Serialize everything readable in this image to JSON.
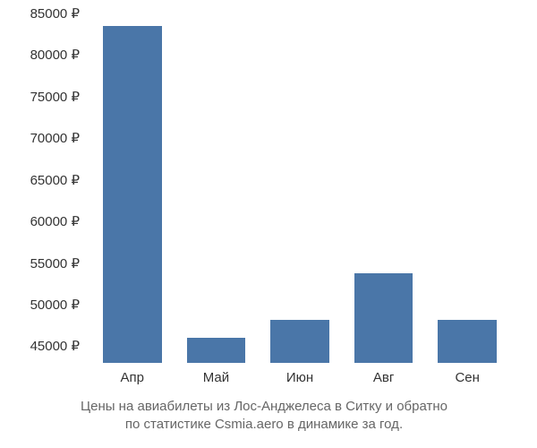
{
  "chart": {
    "type": "bar",
    "categories": [
      "Апр",
      "Май",
      "Июн",
      "Авг",
      "Сен"
    ],
    "values": [
      83500,
      46000,
      48200,
      53800,
      48200
    ],
    "bar_color": "#4a76a8",
    "background_color": "#ffffff",
    "ymin": 43000,
    "ymax": 85000,
    "yticks": [
      45000,
      50000,
      55000,
      60000,
      65000,
      70000,
      75000,
      80000,
      85000
    ],
    "ytick_labels": [
      "45000 ₽",
      "50000 ₽",
      "55000 ₽",
      "60000 ₽",
      "65000 ₽",
      "70000 ₽",
      "75000 ₽",
      "80000 ₽",
      "85000 ₽"
    ],
    "bar_width": 0.7,
    "tick_fontsize": 15,
    "tick_color": "#333333",
    "caption_fontsize": 15,
    "caption_color": "#666666"
  },
  "caption_line1": "Цены на авиабилеты из Лос-Анджелеса в Ситку и обратно",
  "caption_line2": "по статистике Csmia.aero в динамике за год."
}
